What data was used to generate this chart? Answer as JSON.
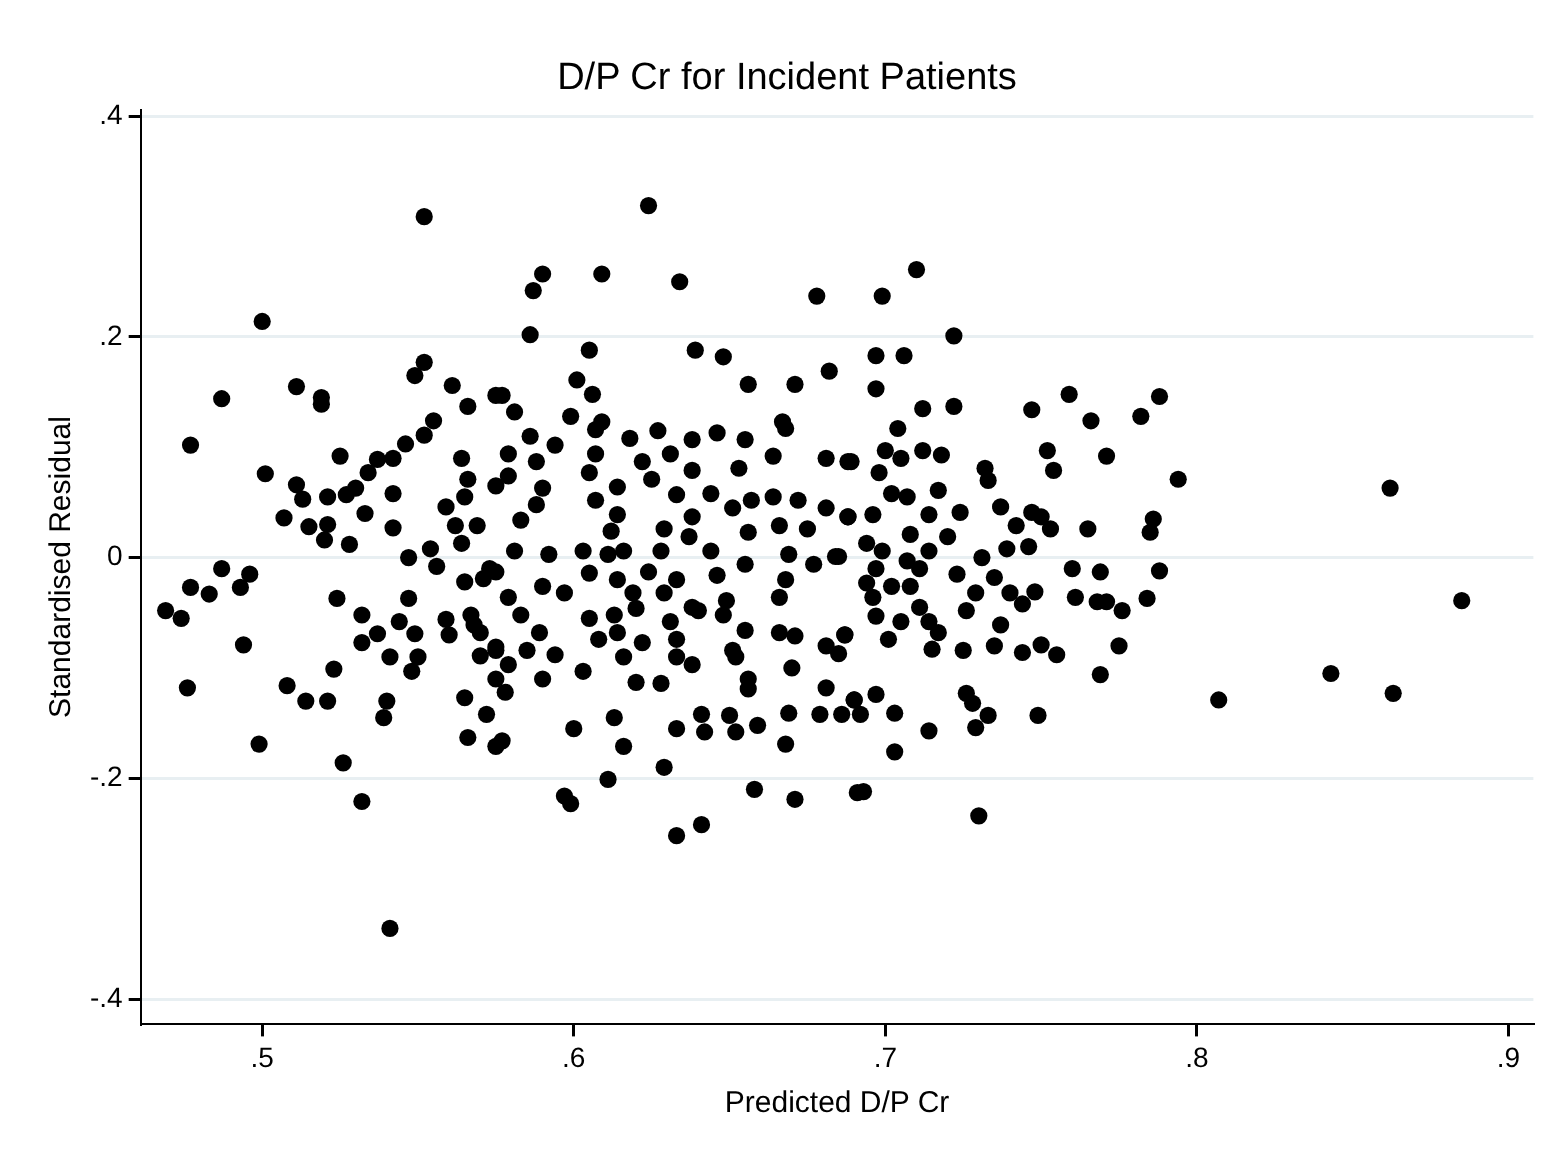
{
  "chart_data": {
    "type": "scatter",
    "title": "D/P Cr for Incident Patients",
    "xlabel": "Predicted D/P Cr",
    "ylabel": "Standardised Residual",
    "color": "#000000",
    "marker": "circle",
    "grid": "y",
    "xlim": [
      0.461,
      0.908
    ],
    "ylim": [
      -0.423,
      0.406
    ],
    "xticks": [
      {
        "value": 0.5,
        "label": ".5"
      },
      {
        "value": 0.6,
        "label": ".6"
      },
      {
        "value": 0.7,
        "label": ".7"
      },
      {
        "value": 0.8,
        "label": ".8"
      },
      {
        "value": 0.9,
        "label": ".9"
      }
    ],
    "yticks": [
      {
        "value": -0.4,
        "label": "-.4"
      },
      {
        "value": -0.2,
        "label": "-.2"
      },
      0,
      {
        "value": 0.2,
        "label": ".2"
      },
      {
        "value": 0.4,
        "label": ".4"
      }
    ],
    "x": [
      0.552,
      0.5,
      0.487,
      0.511,
      0.519,
      0.519,
      0.477,
      0.552,
      0.549,
      0.561,
      0.566,
      0.575,
      0.501,
      0.525,
      0.555,
      0.552,
      0.546,
      0.542,
      0.537,
      0.534,
      0.53,
      0.527,
      0.521,
      0.511,
      0.513,
      0.507,
      0.515,
      0.521,
      0.52,
      0.528,
      0.533,
      0.542,
      0.542,
      0.547,
      0.554,
      0.556,
      0.564,
      0.566,
      0.565,
      0.559,
      0.562,
      0.569,
      0.564,
      0.565,
      0.571,
      0.573,
      0.487,
      0.496,
      0.493,
      0.477,
      0.483,
      0.469,
      0.474,
      0.494,
      0.476,
      0.499,
      0.524,
      0.532,
      0.532,
      0.537,
      0.541,
      0.544,
      0.547,
      0.549,
      0.55,
      0.548,
      0.523,
      0.508,
      0.514,
      0.521,
      0.54,
      0.539,
      0.526,
      0.532,
      0.541,
      0.559,
      0.56,
      0.567,
      0.568,
      0.57,
      0.57,
      0.575,
      0.565,
      0.572,
      0.566,
      0.575,
      0.575,
      0.624,
      0.59,
      0.587,
      0.609,
      0.634,
      0.678,
      0.586,
      0.605,
      0.639,
      0.648,
      0.656,
      0.671,
      0.682,
      0.601,
      0.606,
      0.577,
      0.581,
      0.599,
      0.607,
      0.609,
      0.618,
      0.627,
      0.638,
      0.646,
      0.655,
      0.667,
      0.668,
      0.586,
      0.594,
      0.579,
      0.588,
      0.607,
      0.622,
      0.631,
      0.653,
      0.664,
      0.681,
      0.688,
      0.605,
      0.625,
      0.638,
      0.614,
      0.644,
      0.633,
      0.59,
      0.579,
      0.575,
      0.607,
      0.651,
      0.657,
      0.664,
      0.672,
      0.681,
      0.588,
      0.583,
      0.614,
      0.638,
      0.656,
      0.666,
      0.675,
      0.688,
      0.612,
      0.629,
      0.637,
      0.603,
      0.611,
      0.616,
      0.628,
      0.644,
      0.592,
      0.581,
      0.655,
      0.669,
      0.677,
      0.684,
      0.575,
      0.605,
      0.614,
      0.624,
      0.633,
      0.646,
      0.59,
      0.597,
      0.579,
      0.668,
      0.619,
      0.629,
      0.638,
      0.649,
      0.666,
      0.583,
      0.605,
      0.613,
      0.62,
      0.631,
      0.64,
      0.648,
      0.589,
      0.655,
      0.666,
      0.671,
      0.614,
      0.575,
      0.585,
      0.594,
      0.608,
      0.622,
      0.633,
      0.651,
      0.681,
      0.687,
      0.616,
      0.633,
      0.638,
      0.652,
      0.579,
      0.59,
      0.603,
      0.62,
      0.628,
      0.656,
      0.67,
      0.578,
      0.681,
      0.656,
      0.69,
      0.577,
      0.6,
      0.613,
      0.616,
      0.633,
      0.641,
      0.642,
      0.65,
      0.652,
      0.659,
      0.669,
      0.679,
      0.686,
      0.668,
      0.629,
      0.611,
      0.597,
      0.599,
      0.658,
      0.671,
      0.691,
      0.633,
      0.641,
      0.71,
      0.699,
      0.722,
      0.697,
      0.706,
      0.697,
      0.712,
      0.722,
      0.747,
      0.759,
      0.766,
      0.782,
      0.788,
      0.794,
      0.704,
      0.689,
      0.7,
      0.705,
      0.712,
      0.718,
      0.732,
      0.733,
      0.752,
      0.754,
      0.771,
      0.698,
      0.702,
      0.707,
      0.717,
      0.714,
      0.724,
      0.688,
      0.696,
      0.737,
      0.747,
      0.75,
      0.753,
      0.742,
      0.72,
      0.708,
      0.765,
      0.786,
      0.785,
      0.694,
      0.699,
      0.714,
      0.739,
      0.746,
      0.731,
      0.685,
      0.697,
      0.707,
      0.711,
      0.723,
      0.735,
      0.76,
      0.769,
      0.788,
      0.694,
      0.702,
      0.708,
      0.729,
      0.74,
      0.748,
      0.761,
      0.768,
      0.771,
      0.776,
      0.784,
      0.744,
      0.696,
      0.697,
      0.711,
      0.726,
      0.705,
      0.714,
      0.737,
      0.717,
      0.701,
      0.687,
      0.685,
      0.715,
      0.725,
      0.735,
      0.744,
      0.75,
      0.755,
      0.775,
      0.769,
      0.697,
      0.703,
      0.69,
      0.692,
      0.726,
      0.728,
      0.733,
      0.729,
      0.714,
      0.749,
      0.703,
      0.693,
      0.73,
      0.862,
      0.807,
      0.843,
      0.863,
      0.885
    ],
    "values": [
      0.309,
      0.214,
      0.144,
      0.155,
      0.145,
      0.139,
      0.102,
      0.177,
      0.165,
      0.156,
      0.137,
      0.147,
      0.076,
      0.092,
      0.124,
      0.111,
      0.103,
      0.09,
      0.089,
      0.077,
      0.063,
      0.057,
      0.055,
      0.066,
      0.053,
      0.036,
      0.028,
      0.03,
      0.016,
      0.012,
      0.04,
      0.058,
      0.027,
      0.0,
      0.008,
      -0.008,
      0.09,
      0.071,
      0.055,
      0.046,
      0.029,
      0.029,
      0.013,
      -0.022,
      -0.019,
      -0.01,
      -0.01,
      -0.015,
      -0.027,
      -0.027,
      -0.033,
      -0.048,
      -0.055,
      -0.079,
      -0.118,
      -0.169,
      -0.037,
      -0.052,
      -0.077,
      -0.069,
      -0.09,
      -0.058,
      -0.037,
      -0.069,
      -0.09,
      -0.103,
      -0.101,
      -0.116,
      -0.13,
      -0.13,
      -0.13,
      -0.145,
      -0.186,
      -0.221,
      -0.336,
      -0.056,
      -0.07,
      -0.052,
      -0.061,
      -0.068,
      -0.089,
      -0.081,
      -0.127,
      -0.142,
      -0.163,
      -0.171,
      -0.11,
      0.319,
      0.257,
      0.242,
      0.257,
      0.25,
      0.237,
      0.202,
      0.188,
      0.188,
      0.182,
      0.157,
      0.157,
      0.169,
      0.161,
      0.148,
      0.147,
      0.132,
      0.128,
      0.116,
      0.123,
      0.108,
      0.115,
      0.107,
      0.113,
      0.107,
      0.123,
      0.117,
      0.11,
      0.102,
      0.094,
      0.087,
      0.094,
      0.087,
      0.094,
      0.081,
      0.092,
      0.09,
      0.087,
      0.077,
      0.071,
      0.079,
      0.064,
      0.058,
      0.057,
      0.063,
      0.074,
      0.065,
      0.052,
      0.045,
      0.052,
      0.055,
      0.052,
      0.045,
      0.048,
      0.034,
      0.039,
      0.037,
      0.023,
      0.029,
      0.026,
      0.037,
      0.024,
      0.026,
      0.019,
      0.006,
      0.003,
      0.006,
      0.006,
      0.006,
      0.003,
      0.006,
      -0.006,
      0.003,
      -0.006,
      0.001,
      -0.013,
      -0.014,
      -0.02,
      -0.013,
      -0.02,
      -0.016,
      -0.026,
      -0.032,
      -0.036,
      -0.02,
      -0.032,
      -0.032,
      -0.045,
      -0.039,
      -0.036,
      -0.052,
      -0.055,
      -0.052,
      -0.046,
      -0.058,
      -0.048,
      -0.052,
      -0.068,
      -0.066,
      -0.068,
      -0.071,
      -0.068,
      -0.084,
      -0.084,
      -0.088,
      -0.074,
      -0.077,
      -0.074,
      -0.084,
      -0.08,
      -0.07,
      -0.09,
      -0.09,
      -0.097,
      -0.09,
      -0.097,
      -0.11,
      -0.103,
      -0.113,
      -0.114,
      -0.11,
      -0.1,
      -0.122,
      -0.118,
      -0.119,
      -0.129,
      -0.166,
      -0.155,
      -0.145,
      -0.171,
      -0.155,
      -0.142,
      -0.158,
      -0.143,
      -0.158,
      -0.152,
      -0.141,
      -0.142,
      -0.142,
      -0.169,
      -0.19,
      -0.201,
      -0.216,
      -0.223,
      -0.21,
      -0.219,
      -0.213,
      -0.252,
      -0.242,
      0.261,
      0.237,
      0.201,
      0.183,
      0.183,
      0.153,
      0.135,
      0.137,
      0.134,
      0.148,
      0.124,
      0.128,
      0.146,
      0.071,
      0.117,
      0.087,
      0.097,
      0.09,
      0.097,
      0.093,
      0.081,
      0.07,
      0.097,
      0.079,
      0.092,
      0.077,
      0.058,
      0.055,
      0.061,
      0.039,
      0.041,
      0.037,
      0.039,
      0.046,
      0.041,
      0.037,
      0.026,
      0.029,
      0.019,
      0.021,
      0.026,
      0.035,
      0.023,
      0.013,
      0.006,
      0.006,
      0.008,
      0.01,
      0.0,
      0.001,
      -0.01,
      -0.003,
      -0.01,
      -0.015,
      -0.018,
      -0.01,
      -0.013,
      -0.012,
      -0.023,
      -0.026,
      -0.026,
      -0.032,
      -0.032,
      -0.031,
      -0.036,
      -0.04,
      -0.04,
      -0.048,
      -0.037,
      -0.042,
      -0.036,
      -0.053,
      -0.045,
      -0.048,
      -0.058,
      -0.058,
      -0.061,
      -0.068,
      -0.074,
      -0.07,
      -0.087,
      -0.083,
      -0.084,
      -0.08,
      -0.086,
      -0.079,
      -0.088,
      -0.08,
      -0.106,
      -0.124,
      -0.141,
      -0.129,
      -0.142,
      -0.123,
      -0.132,
      -0.143,
      -0.154,
      -0.157,
      -0.143,
      -0.176,
      -0.212,
      -0.234,
      0.063,
      -0.129,
      -0.105,
      -0.123,
      -0.039
    ]
  }
}
